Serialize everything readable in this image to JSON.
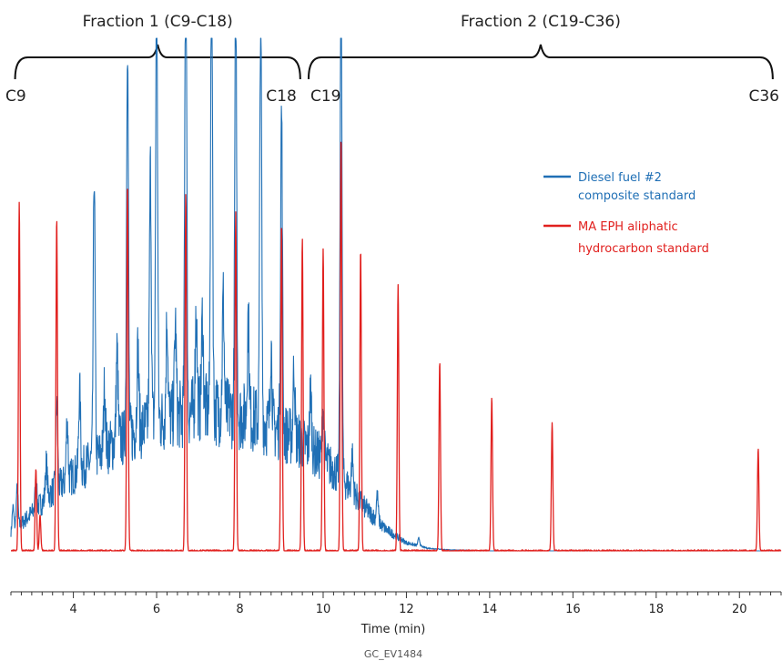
{
  "chart_data": {
    "type": "line",
    "xlabel": "Time (min)",
    "ylabel": "",
    "xlim": [
      2.5,
      21.0
    ],
    "ylim": [
      0,
      1.0
    ],
    "xticks": [
      4,
      6,
      8,
      10,
      12,
      14,
      16,
      18,
      20
    ],
    "legend_position": "right",
    "fractions": [
      {
        "label": "Fraction 1 (C9-C18)",
        "start": 2.6,
        "end": 9.45,
        "start_label": "C9",
        "end_label": "C18"
      },
      {
        "label": "Fraction 2 (C19-C36)",
        "start": 9.65,
        "end": 20.8,
        "start_label": "C19",
        "end_label": "C36"
      }
    ],
    "series": [
      {
        "name": "Diesel fuel #2 composite standard",
        "color": "#1f6fb5",
        "hump": [
          [
            2.5,
            0.03
          ],
          [
            3.0,
            0.07
          ],
          [
            3.5,
            0.11
          ],
          [
            4.0,
            0.14
          ],
          [
            4.5,
            0.17
          ],
          [
            5.0,
            0.2
          ],
          [
            5.5,
            0.22
          ],
          [
            6.0,
            0.24
          ],
          [
            6.5,
            0.25
          ],
          [
            7.0,
            0.26
          ],
          [
            7.5,
            0.26
          ],
          [
            8.0,
            0.25
          ],
          [
            8.5,
            0.24
          ],
          [
            9.0,
            0.22
          ],
          [
            9.5,
            0.2
          ],
          [
            10.0,
            0.17
          ],
          [
            10.5,
            0.13
          ],
          [
            11.0,
            0.08
          ],
          [
            11.5,
            0.04
          ],
          [
            12.0,
            0.015
          ],
          [
            12.5,
            0.005
          ],
          [
            13.0,
            0.002
          ],
          [
            14.0,
            0.0
          ],
          [
            21.0,
            0.0
          ]
        ],
        "peaks": [
          {
            "t": 2.55,
            "h": 0.05
          },
          {
            "t": 2.65,
            "h": 0.08
          },
          {
            "t": 3.1,
            "h": 0.05
          },
          {
            "t": 3.35,
            "h": 0.07
          },
          {
            "t": 3.6,
            "h": 0.17
          },
          {
            "t": 3.85,
            "h": 0.12
          },
          {
            "t": 4.15,
            "h": 0.16
          },
          {
            "t": 4.5,
            "h": 0.56
          },
          {
            "t": 4.75,
            "h": 0.13
          },
          {
            "t": 5.05,
            "h": 0.18
          },
          {
            "t": 5.3,
            "h": 0.78
          },
          {
            "t": 5.55,
            "h": 0.16
          },
          {
            "t": 5.85,
            "h": 0.5
          },
          {
            "t": 6.0,
            "h": 0.9
          },
          {
            "t": 6.25,
            "h": 0.2
          },
          {
            "t": 6.45,
            "h": 0.18
          },
          {
            "t": 6.7,
            "h": 1.0
          },
          {
            "t": 6.95,
            "h": 0.2
          },
          {
            "t": 7.1,
            "h": 0.18
          },
          {
            "t": 7.32,
            "h": 1.0
          },
          {
            "t": 7.6,
            "h": 0.22
          },
          {
            "t": 7.9,
            "h": 0.84
          },
          {
            "t": 8.2,
            "h": 0.2
          },
          {
            "t": 8.5,
            "h": 0.82
          },
          {
            "t": 8.75,
            "h": 0.16
          },
          {
            "t": 9.0,
            "h": 0.63
          },
          {
            "t": 9.3,
            "h": 0.14
          },
          {
            "t": 9.7,
            "h": 0.12
          },
          {
            "t": 10.0,
            "h": 0.1
          },
          {
            "t": 10.43,
            "h": 0.99
          },
          {
            "t": 10.7,
            "h": 0.07
          },
          {
            "t": 11.3,
            "h": 0.05
          },
          {
            "t": 12.3,
            "h": 0.015
          }
        ]
      },
      {
        "name": "MA EPH aliphatic hydrocarbon standard",
        "color": "#e1201e",
        "peaks": [
          {
            "t": 2.7,
            "h": 0.68
          },
          {
            "t": 3.1,
            "h": 0.16
          },
          {
            "t": 3.2,
            "h": 0.07
          },
          {
            "t": 3.6,
            "h": 0.65
          },
          {
            "t": 5.3,
            "h": 0.72
          },
          {
            "t": 6.7,
            "h": 0.7
          },
          {
            "t": 7.9,
            "h": 0.66
          },
          {
            "t": 9.0,
            "h": 0.64
          },
          {
            "t": 9.5,
            "h": 0.61
          },
          {
            "t": 10.0,
            "h": 0.59
          },
          {
            "t": 10.43,
            "h": 0.81
          },
          {
            "t": 10.9,
            "h": 0.59
          },
          {
            "t": 11.8,
            "h": 0.52
          },
          {
            "t": 12.8,
            "h": 0.37
          },
          {
            "t": 14.05,
            "h": 0.3
          },
          {
            "t": 15.5,
            "h": 0.25
          },
          {
            "t": 20.45,
            "h": 0.2
          }
        ]
      }
    ],
    "annotation": "GC_EV1484"
  },
  "legend": [
    {
      "line1": "Diesel fuel #2",
      "line2": "composite standard",
      "color": "#1f6fb5"
    },
    {
      "line1": "MA EPH aliphatic",
      "line2": "hydrocarbon standard",
      "color": "#e1201e"
    }
  ]
}
